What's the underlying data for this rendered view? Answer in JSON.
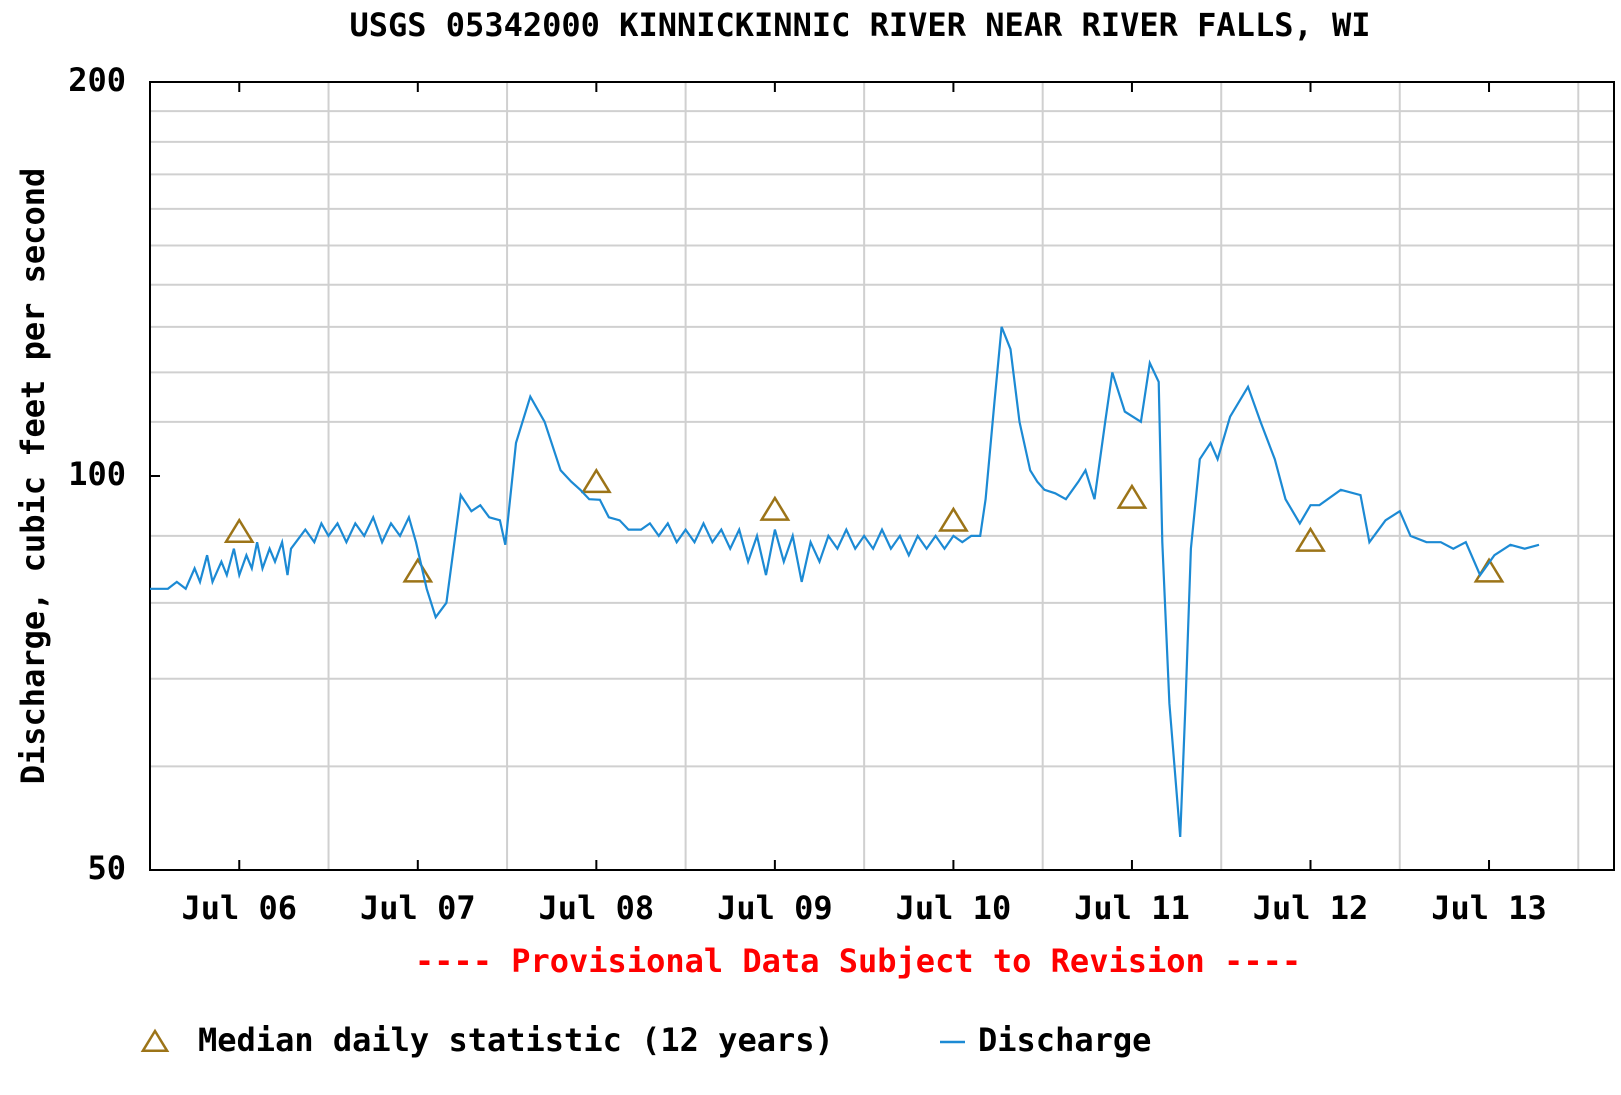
{
  "chart_data": {
    "type": "line",
    "title": "USGS 05342000 KINNICKINNIC RIVER NEAR RIVER FALLS, WI",
    "y_label": "Discharge, cubic feet per second",
    "note": "---- Provisional Data Subject to Revision ----",
    "log_y": true,
    "grid": true,
    "ylim": [
      50,
      200
    ],
    "yticks": [
      50,
      100,
      200
    ],
    "yminor": [
      60,
      70,
      80,
      90,
      110,
      120,
      130,
      140,
      150,
      160,
      170,
      180,
      190
    ],
    "xlim": [
      6,
      14.2
    ],
    "xticks": [
      {
        "value": 6.5,
        "label": "Jul 06"
      },
      {
        "value": 7.5,
        "label": "Jul 07"
      },
      {
        "value": 8.5,
        "label": "Jul 08"
      },
      {
        "value": 9.5,
        "label": "Jul 09"
      },
      {
        "value": 10.5,
        "label": "Jul 10"
      },
      {
        "value": 11.5,
        "label": "Jul 11"
      },
      {
        "value": 12.5,
        "label": "Jul 12"
      },
      {
        "value": 13.5,
        "label": "Jul 13"
      }
    ],
    "xgrid": [
      7,
      8,
      9,
      10,
      11,
      12,
      13,
      14
    ],
    "series": [
      {
        "name": "Median daily statistic (12 years)",
        "color": "#9c7418",
        "marker": "triangle",
        "x": [
          6.5,
          7.5,
          8.5,
          9.5,
          10.5,
          11.5,
          12.5,
          13.5
        ],
        "values": [
          90.6,
          84.5,
          98.9,
          94.2,
          92.4,
          96.2,
          89.2,
          84.5
        ]
      },
      {
        "name": "Discharge",
        "color": "#1c8ad4",
        "marker": "line",
        "x": [
          6.0,
          6.05,
          6.1,
          6.15,
          6.2,
          6.25,
          6.28,
          6.32,
          6.35,
          6.4,
          6.43,
          6.47,
          6.5,
          6.54,
          6.57,
          6.6,
          6.63,
          6.67,
          6.7,
          6.74,
          6.77,
          6.79,
          6.87,
          6.92,
          6.96,
          7.0,
          7.05,
          7.1,
          7.15,
          7.2,
          7.25,
          7.3,
          7.35,
          7.4,
          7.45,
          7.49,
          7.55,
          7.6,
          7.66,
          7.74,
          7.8,
          7.85,
          7.9,
          7.96,
          7.99,
          8.05,
          8.13,
          8.21,
          8.3,
          8.36,
          8.41,
          8.46,
          8.52,
          8.57,
          8.63,
          8.68,
          8.75,
          8.8,
          8.85,
          8.9,
          8.95,
          9.0,
          9.05,
          9.1,
          9.15,
          9.2,
          9.25,
          9.3,
          9.35,
          9.4,
          9.45,
          9.5,
          9.55,
          9.6,
          9.65,
          9.7,
          9.75,
          9.8,
          9.85,
          9.9,
          9.95,
          10.0,
          10.05,
          10.1,
          10.15,
          10.2,
          10.25,
          10.3,
          10.35,
          10.4,
          10.45,
          10.5,
          10.55,
          10.6,
          10.65,
          10.68,
          10.73,
          10.77,
          10.82,
          10.87,
          10.93,
          10.97,
          11.01,
          11.07,
          11.13,
          11.2,
          11.24,
          11.29,
          11.35,
          11.39,
          11.46,
          11.55,
          11.6,
          11.65,
          11.67,
          11.71,
          11.77,
          11.8,
          11.83,
          11.88,
          11.94,
          11.98,
          12.05,
          12.15,
          12.22,
          12.3,
          12.36,
          12.44,
          12.5,
          12.55,
          12.67,
          12.78,
          12.83,
          12.92,
          13.0,
          13.06,
          13.15,
          13.23,
          13.3,
          13.37,
          13.45,
          13.53,
          13.62,
          13.7,
          13.78
        ],
        "values": [
          82,
          82,
          82,
          83,
          82,
          85,
          83,
          87,
          83,
          86,
          84,
          88,
          84,
          87,
          85,
          89,
          85,
          88,
          86,
          89,
          84,
          88,
          91,
          89,
          92,
          90,
          92,
          89,
          92,
          90,
          93,
          89,
          92,
          90,
          93,
          89,
          82,
          78,
          80,
          96.7,
          94,
          95,
          93,
          92.5,
          88.6,
          106,
          115,
          110,
          101,
          99,
          97.6,
          96,
          95.9,
          93,
          92.5,
          91,
          91,
          92,
          90,
          92,
          89,
          91,
          89,
          92,
          89,
          91,
          88,
          91,
          86,
          90,
          84,
          91,
          86,
          90,
          83,
          89,
          86,
          90,
          88,
          91,
          88,
          90,
          88,
          91,
          88,
          90,
          87,
          90,
          88,
          90,
          88,
          90,
          89,
          90,
          90,
          96,
          114,
          130,
          125,
          110,
          101,
          99,
          97.6,
          97,
          96,
          99,
          101,
          96,
          110,
          120,
          112,
          110,
          122,
          118,
          89,
          67,
          53,
          67,
          88,
          103,
          106,
          103,
          111,
          117,
          110,
          103,
          96,
          92,
          95,
          95,
          97.6,
          96.7,
          89,
          92.5,
          94,
          90,
          89,
          89,
          88,
          89,
          84,
          87,
          88.6,
          88,
          88.6
        ]
      }
    ]
  }
}
